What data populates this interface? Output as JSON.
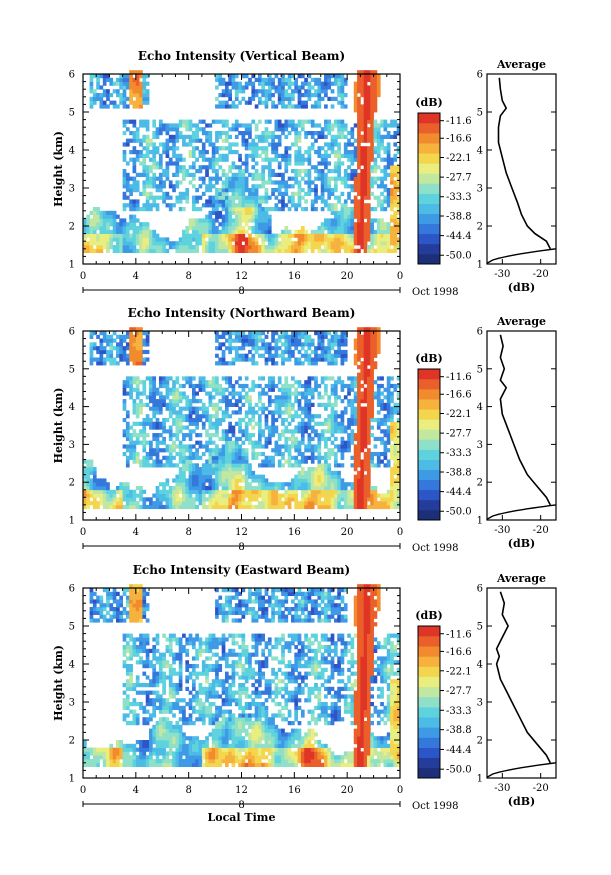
{
  "chart_data": [
    {
      "type": "heatmap",
      "title": "Echo Intensity (Vertical Beam)",
      "xlabel": "",
      "ylabel": "Height (km)",
      "x_ticks": [
        "0",
        "4",
        "8",
        "12",
        "16",
        "20",
        "0"
      ],
      "x_range": [
        0,
        24
      ],
      "date_day": "8",
      "date_label": "Oct 1998",
      "ylim": [
        1,
        6
      ],
      "y_ticks": [
        "1",
        "2",
        "3",
        "4",
        "5",
        "6"
      ],
      "colorbar": {
        "unit": "(dB)",
        "range": [
          -52.5,
          -9.4
        ],
        "ticks": [
          "-11.6",
          "-16.6",
          "-22.1",
          "-27.7",
          "-33.3",
          "-38.8",
          "-44.4",
          "-50.0"
        ]
      },
      "average_profile": {
        "title": "Average",
        "xlabel": "(dB)",
        "x_ticks": [
          "-30",
          "-20"
        ],
        "xlim": [
          -34,
          -16
        ],
        "values": [
          [
            -17.5,
            1.4
          ],
          [
            -18.5,
            1.6
          ],
          [
            -21.5,
            1.8
          ],
          [
            -23.5,
            2.0
          ],
          [
            -25.0,
            2.3
          ],
          [
            -26.0,
            2.6
          ],
          [
            -27.5,
            3.0
          ],
          [
            -29.0,
            3.4
          ],
          [
            -30.0,
            3.8
          ],
          [
            -31.0,
            4.2
          ],
          [
            -31.0,
            4.6
          ],
          [
            -30.5,
            4.9
          ],
          [
            -29.0,
            5.1
          ],
          [
            -30.0,
            5.3
          ],
          [
            -30.5,
            5.6
          ],
          [
            -30.8,
            5.9
          ]
        ]
      }
    },
    {
      "type": "heatmap",
      "title": "Echo Intensity (Northward Beam)",
      "xlabel": "",
      "ylabel": "Height (km)",
      "x_ticks": [
        "0",
        "4",
        "8",
        "12",
        "16",
        "20",
        "0"
      ],
      "x_range": [
        0,
        24
      ],
      "date_day": "8",
      "date_label": "Oct 1998",
      "ylim": [
        1,
        6
      ],
      "y_ticks": [
        "1",
        "2",
        "3",
        "4",
        "5",
        "6"
      ],
      "colorbar": {
        "unit": "(dB)",
        "range": [
          -52.5,
          -9.4
        ],
        "ticks": [
          "-11.6",
          "-16.6",
          "-22.1",
          "-27.7",
          "-33.3",
          "-38.8",
          "-44.4",
          "-50.0"
        ]
      },
      "average_profile": {
        "title": "Average",
        "xlabel": "(dB)",
        "x_ticks": [
          "-30",
          "-20"
        ],
        "xlim": [
          -34,
          -16
        ],
        "values": [
          [
            -17.5,
            1.4
          ],
          [
            -18.5,
            1.6
          ],
          [
            -21.0,
            1.9
          ],
          [
            -23.5,
            2.2
          ],
          [
            -25.5,
            2.6
          ],
          [
            -27.0,
            3.0
          ],
          [
            -28.5,
            3.4
          ],
          [
            -30.0,
            3.8
          ],
          [
            -30.5,
            4.2
          ],
          [
            -29.0,
            4.5
          ],
          [
            -30.5,
            4.7
          ],
          [
            -29.5,
            5.0
          ],
          [
            -30.5,
            5.3
          ],
          [
            -29.8,
            5.6
          ],
          [
            -30.5,
            5.9
          ]
        ]
      }
    },
    {
      "type": "heatmap",
      "title": "Echo Intensity (Eastward Beam)",
      "xlabel": "Local Time",
      "ylabel": "Height (km)",
      "x_ticks": [
        "0",
        "4",
        "8",
        "12",
        "16",
        "20",
        "0"
      ],
      "x_range": [
        0,
        24
      ],
      "date_day": "8",
      "date_label": "Oct 1998",
      "ylim": [
        1,
        6
      ],
      "y_ticks": [
        "1",
        "2",
        "3",
        "4",
        "5",
        "6"
      ],
      "colorbar": {
        "unit": "(dB)",
        "range": [
          -52.5,
          -9.4
        ],
        "ticks": [
          "-11.6",
          "-16.6",
          "-22.1",
          "-27.7",
          "-33.3",
          "-38.8",
          "-44.4",
          "-50.0"
        ]
      },
      "average_profile": {
        "title": "Average",
        "xlabel": "(dB)",
        "x_ticks": [
          "-30",
          "-20"
        ],
        "xlim": [
          -34,
          -16
        ],
        "values": [
          [
            -17.5,
            1.4
          ],
          [
            -18.5,
            1.6
          ],
          [
            -21.0,
            1.9
          ],
          [
            -23.5,
            2.2
          ],
          [
            -25.5,
            2.6
          ],
          [
            -27.5,
            3.0
          ],
          [
            -29.0,
            3.3
          ],
          [
            -30.5,
            3.6
          ],
          [
            -31.5,
            4.0
          ],
          [
            -30.8,
            4.2
          ],
          [
            -31.5,
            4.4
          ],
          [
            -30.0,
            4.7
          ],
          [
            -28.5,
            5.0
          ],
          [
            -30.0,
            5.3
          ],
          [
            -29.5,
            5.6
          ],
          [
            -30.5,
            5.9
          ]
        ]
      }
    }
  ]
}
